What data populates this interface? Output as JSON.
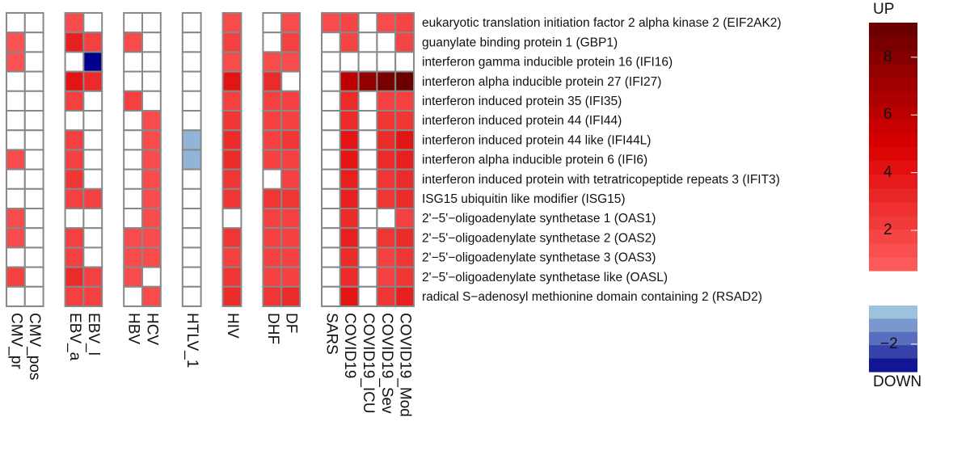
{
  "chart_data": {
    "type": "heatmap",
    "x": [
      "CMV_pr",
      "CMV_pos",
      "EBV_a",
      "EBV_l",
      "HBV",
      "HCV",
      "HTLV_1",
      "HIV",
      "DHF",
      "DF",
      "SARS",
      "COVID19",
      "COVID19_ICU",
      "COVID19_Sev",
      "COVID19_Mod"
    ],
    "group_sizes": [
      2,
      2,
      2,
      1,
      1,
      2,
      5
    ],
    "y": [
      "eukaryotic translation initiation factor 2 alpha kinase 2 (EIF2AK2)",
      "guanylate binding protein 1 (GBP1)",
      "interferon gamma inducible protein 16 (IFI16)",
      "interferon alpha inducible protein 27 (IFI27)",
      "interferon induced protein 35 (IFI35)",
      "interferon induced protein 44 (IFI44)",
      "interferon induced protein 44 like (IFI44L)",
      "interferon alpha inducible protein 6 (IFI6)",
      "interferon induced protein with tetratricopeptide repeats 3 (IFIT3)",
      "ISG15 ubiquitin like modifier (ISG15)",
      "2'−5'−oligoadenylate synthetase 1 (OAS1)",
      "2'−5'−oligoadenylate synthetase 2 (OAS2)",
      "2'−5'−oligoadenylate synthetase 3 (OAS3)",
      "2'−5'−oligoadenylate synthetase like (OASL)",
      "radical S−adenosyl methionine domain containing 2 (RSAD2)"
    ],
    "values": [
      [
        null,
        null,
        1.5,
        null,
        null,
        null,
        null,
        1.5,
        null,
        1.5,
        1.5,
        1.8,
        null,
        1.5,
        1.8
      ],
      [
        1.2,
        null,
        3.5,
        2,
        1.5,
        null,
        null,
        2,
        null,
        2,
        null,
        1.8,
        null,
        null,
        1.8
      ],
      [
        1.2,
        null,
        null,
        -3,
        null,
        null,
        null,
        1.5,
        1.5,
        1.5,
        null,
        null,
        null,
        null,
        null
      ],
      [
        null,
        null,
        4,
        3,
        null,
        null,
        null,
        4,
        3,
        null,
        null,
        6,
        7.5,
        8.5,
        9
      ],
      [
        null,
        null,
        2,
        null,
        2,
        null,
        null,
        2,
        2,
        2,
        null,
        3,
        null,
        2,
        2
      ],
      [
        null,
        null,
        null,
        null,
        null,
        1.5,
        null,
        2.5,
        2,
        2,
        null,
        3,
        null,
        2.5,
        2.5
      ],
      [
        null,
        null,
        2,
        null,
        null,
        1.5,
        -1,
        3,
        2,
        2.5,
        null,
        4,
        null,
        3,
        4
      ],
      [
        1.5,
        null,
        2,
        null,
        null,
        1.5,
        -1,
        3,
        2,
        2,
        null,
        4,
        null,
        3,
        3.5
      ],
      [
        null,
        null,
        2.5,
        null,
        null,
        1.5,
        null,
        2.5,
        null,
        2,
        null,
        3.5,
        null,
        2.5,
        3
      ],
      [
        null,
        null,
        2,
        2,
        null,
        1.5,
        null,
        2.5,
        2.5,
        2.5,
        null,
        3.5,
        null,
        2.5,
        3
      ],
      [
        1.5,
        null,
        null,
        null,
        null,
        1.5,
        null,
        null,
        2,
        2,
        null,
        3,
        null,
        null,
        2
      ],
      [
        1.5,
        null,
        2,
        null,
        1.5,
        1.5,
        null,
        2.5,
        2,
        2,
        null,
        3.5,
        null,
        2.5,
        3
      ],
      [
        null,
        null,
        2,
        null,
        1.5,
        1.5,
        null,
        2,
        2,
        2,
        null,
        3,
        null,
        2,
        2.5
      ],
      [
        2,
        null,
        3,
        2,
        1.5,
        null,
        null,
        2.5,
        2,
        2,
        null,
        3,
        null,
        2,
        2.5
      ],
      [
        null,
        null,
        2,
        2,
        null,
        1.5,
        null,
        3,
        2.5,
        3,
        null,
        4,
        null,
        2.5,
        3.5
      ]
    ],
    "colorbar": {
      "up_label": "UP",
      "down_label": "DOWN",
      "up_lim": [
        0.6,
        9.2
      ],
      "up_ticks": [
        2,
        4,
        6,
        8
      ],
      "down_lim": [
        -3,
        -0.6
      ],
      "down_ticks": [
        {
          "value": -2,
          "label": "−2"
        }
      ]
    }
  }
}
